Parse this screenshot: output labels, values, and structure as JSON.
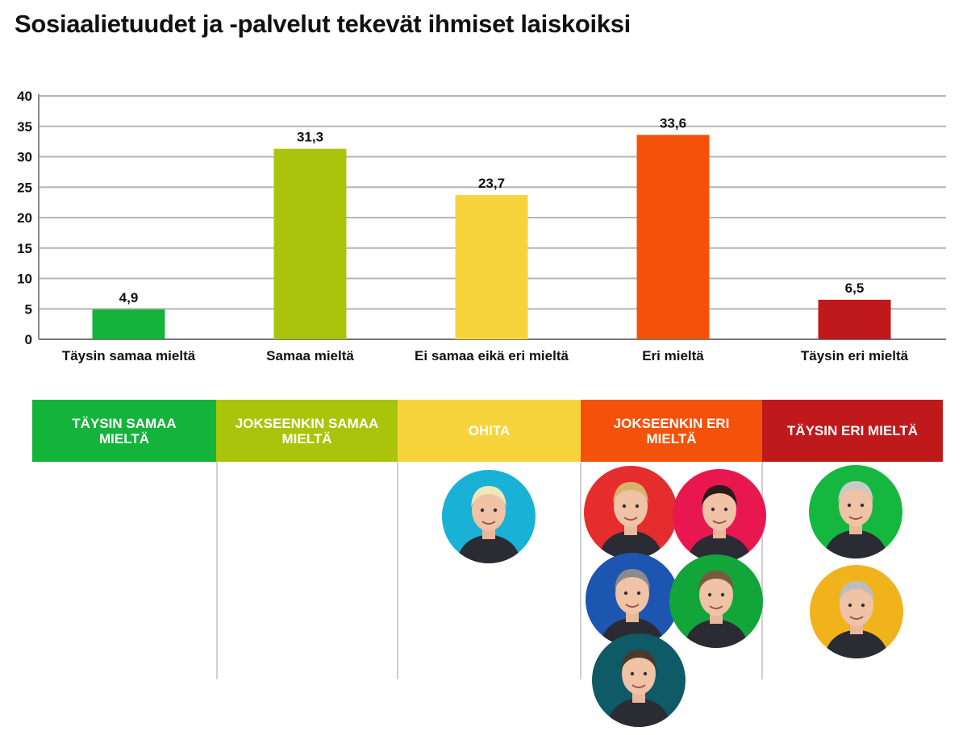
{
  "chart_data": {
    "type": "bar",
    "title": "Sosiaalietuudet ja -palvelut tekevät ihmiset laiskoiksi",
    "categories": [
      "Täysin samaa mieltä",
      "Samaa mieltä",
      "Ei samaa eikä eri mieltä",
      "Eri mieltä",
      "Täysin eri mieltä"
    ],
    "values": [
      4.9,
      31.3,
      23.7,
      33.6,
      6.5
    ],
    "value_labels": [
      "4,9",
      "31,3",
      "23,7",
      "33,6",
      "6,5"
    ],
    "colors": [
      "#14b43a",
      "#a9c40a",
      "#f8d43c",
      "#f4520b",
      "#c0191c"
    ],
    "ylim": [
      0,
      40
    ],
    "yticks": [
      "0",
      "5",
      "10",
      "15",
      "20",
      "25",
      "30",
      "35",
      "40"
    ],
    "xlabel": "",
    "ylabel": "",
    "grid": true
  },
  "bands": [
    {
      "label": "Täysin samaa mieltä",
      "color": "#14b43a"
    },
    {
      "label": "Jokseenkin samaa mieltä",
      "color": "#a9c40a"
    },
    {
      "label": "Ohita",
      "color": "#f8d43c"
    },
    {
      "label": "Jokseenkin eri mieltä",
      "color": "#f4520b"
    },
    {
      "label": "Täysin eri mieltä",
      "color": "#c0191c"
    }
  ],
  "avatars": [
    {
      "group": "Ohita",
      "bg": "#19b1d6",
      "hair": "#f1e6b8"
    },
    {
      "group": "Jokseenkin eri mieltä",
      "bg": "#e52d2d",
      "hair": "#d8b46a"
    },
    {
      "group": "Jokseenkin eri mieltä",
      "bg": "#e8174f",
      "hair": "#2a1c1a"
    },
    {
      "group": "Jokseenkin eri mieltä",
      "bg": "#1d56b0",
      "hair": "#8a8a8a"
    },
    {
      "group": "Jokseenkin eri mieltä",
      "bg": "#12a53a",
      "hair": "#7a5a3c"
    },
    {
      "group": "Jokseenkin eri mieltä",
      "bg": "#0e5a66",
      "hair": "#4a3a2c"
    },
    {
      "group": "Täysin eri mieltä",
      "bg": "#16b73e",
      "hair": "#c9c9c9"
    },
    {
      "group": "Täysin eri mieltä",
      "bg": "#f1b31c",
      "hair": "#bdbdbd"
    }
  ]
}
